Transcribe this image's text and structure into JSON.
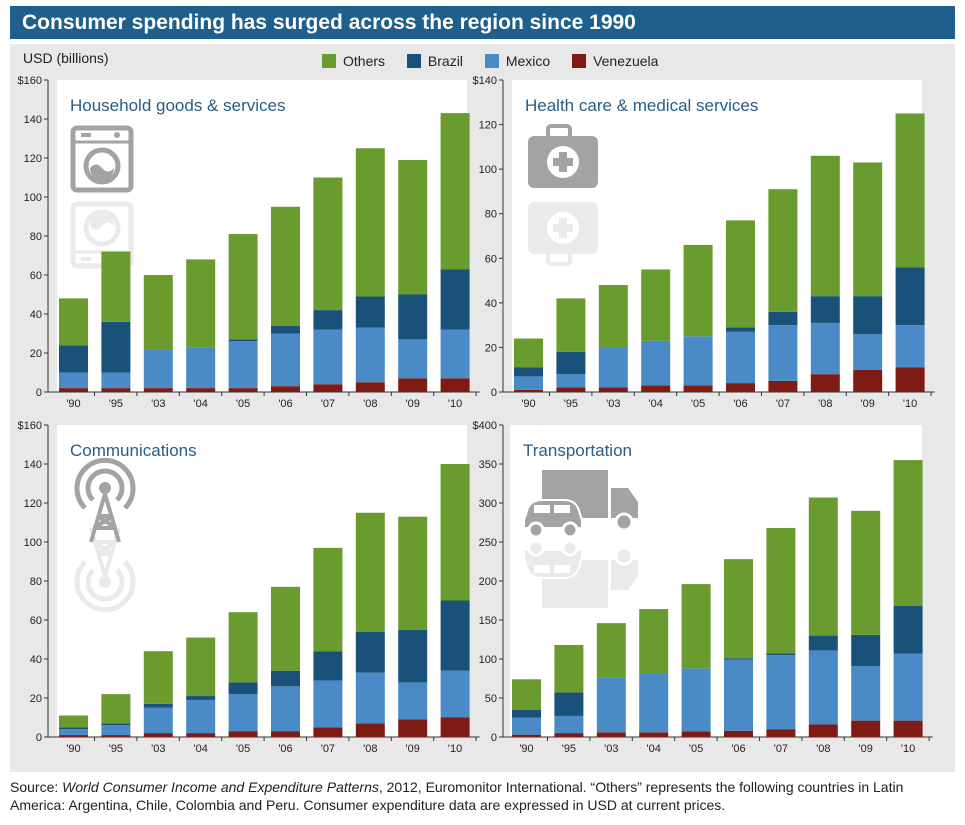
{
  "title": "Consumer spending has surged across the region since 1990",
  "ylabel": "USD (billions)",
  "legend": [
    {
      "name": "Others",
      "color": "#6a9b2e"
    },
    {
      "name": "Brazil",
      "color": "#1a5178"
    },
    {
      "name": "Mexico",
      "color": "#4a8ac6"
    },
    {
      "name": "Venezuela",
      "color": "#7e1c14"
    }
  ],
  "source": {
    "prefix": "Source: ",
    "publication": "World Consumer Income and Expenditure Patterns",
    "rest": ", 2012, Euromonitor International. “Others” represents the following countries in Latin America: Argentina, Chile, Colombia and Peru. Consumer expenditure data are expressed in USD at current prices."
  },
  "chart_data": [
    {
      "type": "bar",
      "stacked": true,
      "title": "Household goods & services",
      "icon": "washing-machine-icon",
      "categories": [
        "'90",
        "'95",
        "'03",
        "'04",
        "'05",
        "'06",
        "'07",
        "'08",
        "'09",
        "'10"
      ],
      "ylim": [
        0,
        160
      ],
      "yticks": [
        0,
        20,
        40,
        60,
        80,
        100,
        120,
        140,
        160
      ],
      "ytick_labels": [
        "0",
        "20",
        "40",
        "60",
        "80",
        "100",
        "120",
        "140",
        "$160"
      ],
      "series": [
        {
          "name": "Venezuela",
          "values": [
            2,
            2,
            2,
            2,
            2,
            3,
            4,
            5,
            7,
            7
          ]
        },
        {
          "name": "Mexico",
          "values": [
            8,
            8,
            20,
            21,
            24,
            27,
            28,
            28,
            20,
            25
          ]
        },
        {
          "name": "Brazil",
          "values": [
            14,
            26,
            0,
            0,
            1,
            4,
            10,
            16,
            23,
            31
          ]
        },
        {
          "name": "Others",
          "values": [
            24,
            36,
            38,
            45,
            54,
            61,
            68,
            76,
            69,
            80
          ]
        }
      ]
    },
    {
      "type": "bar",
      "stacked": true,
      "title": "Health care & medical services",
      "icon": "medical-kit-icon",
      "categories": [
        "'90",
        "'95",
        "'03",
        "'04",
        "'05",
        "'06",
        "'07",
        "'08",
        "'09",
        "'10"
      ],
      "ylim": [
        0,
        140
      ],
      "yticks": [
        0,
        20,
        40,
        60,
        80,
        100,
        120,
        140
      ],
      "ytick_labels": [
        "0",
        "20",
        "40",
        "60",
        "80",
        "100",
        "120",
        "$140"
      ],
      "series": [
        {
          "name": "Venezuela",
          "values": [
            1,
            2,
            2,
            3,
            3,
            4,
            5,
            8,
            10,
            11
          ]
        },
        {
          "name": "Mexico",
          "values": [
            6,
            6,
            18,
            20,
            22,
            23,
            25,
            23,
            16,
            19
          ]
        },
        {
          "name": "Brazil",
          "values": [
            4,
            10,
            0,
            0,
            0,
            2,
            6,
            12,
            17,
            26
          ]
        },
        {
          "name": "Others",
          "values": [
            13,
            24,
            28,
            32,
            41,
            48,
            55,
            63,
            60,
            69
          ]
        }
      ]
    },
    {
      "type": "bar",
      "stacked": true,
      "title": "Communications",
      "icon": "radio-tower-icon",
      "categories": [
        "'90",
        "'95",
        "'03",
        "'04",
        "'05",
        "'06",
        "'07",
        "'08",
        "'09",
        "'10"
      ],
      "ylim": [
        0,
        160
      ],
      "yticks": [
        0,
        20,
        40,
        60,
        80,
        100,
        120,
        140,
        160
      ],
      "ytick_labels": [
        "0",
        "20",
        "40",
        "60",
        "80",
        "100",
        "120",
        "140",
        "$160"
      ],
      "series": [
        {
          "name": "Venezuela",
          "values": [
            1,
            1,
            2,
            2,
            3,
            3,
            5,
            7,
            9,
            10
          ]
        },
        {
          "name": "Mexico",
          "values": [
            3,
            5,
            13,
            17,
            19,
            23,
            24,
            26,
            19,
            24
          ]
        },
        {
          "name": "Brazil",
          "values": [
            1,
            1,
            2,
            2,
            6,
            8,
            15,
            21,
            27,
            36
          ]
        },
        {
          "name": "Others",
          "values": [
            6,
            15,
            27,
            30,
            36,
            43,
            53,
            61,
            58,
            70
          ]
        }
      ]
    },
    {
      "type": "bar",
      "stacked": true,
      "title": "Transportation",
      "icon": "truck-car-icon",
      "categories": [
        "'90",
        "'95",
        "'03",
        "'04",
        "'05",
        "'06",
        "'07",
        "'08",
        "'09",
        "'10"
      ],
      "ylim": [
        0,
        400
      ],
      "yticks": [
        0,
        50,
        100,
        150,
        200,
        250,
        300,
        350,
        400
      ],
      "ytick_labels": [
        "0",
        "50",
        "100",
        "150",
        "200",
        "250",
        "300",
        "350",
        "$400"
      ],
      "series": [
        {
          "name": "Venezuela",
          "values": [
            3,
            5,
            6,
            6,
            7,
            8,
            10,
            16,
            21,
            21
          ]
        },
        {
          "name": "Mexico",
          "values": [
            22,
            22,
            70,
            76,
            81,
            91,
            95,
            95,
            70,
            86
          ]
        },
        {
          "name": "Brazil",
          "values": [
            10,
            30,
            0,
            0,
            0,
            2,
            2,
            19,
            40,
            61
          ]
        },
        {
          "name": "Others",
          "values": [
            39,
            61,
            70,
            82,
            108,
            127,
            161,
            177,
            159,
            187
          ]
        }
      ]
    }
  ]
}
